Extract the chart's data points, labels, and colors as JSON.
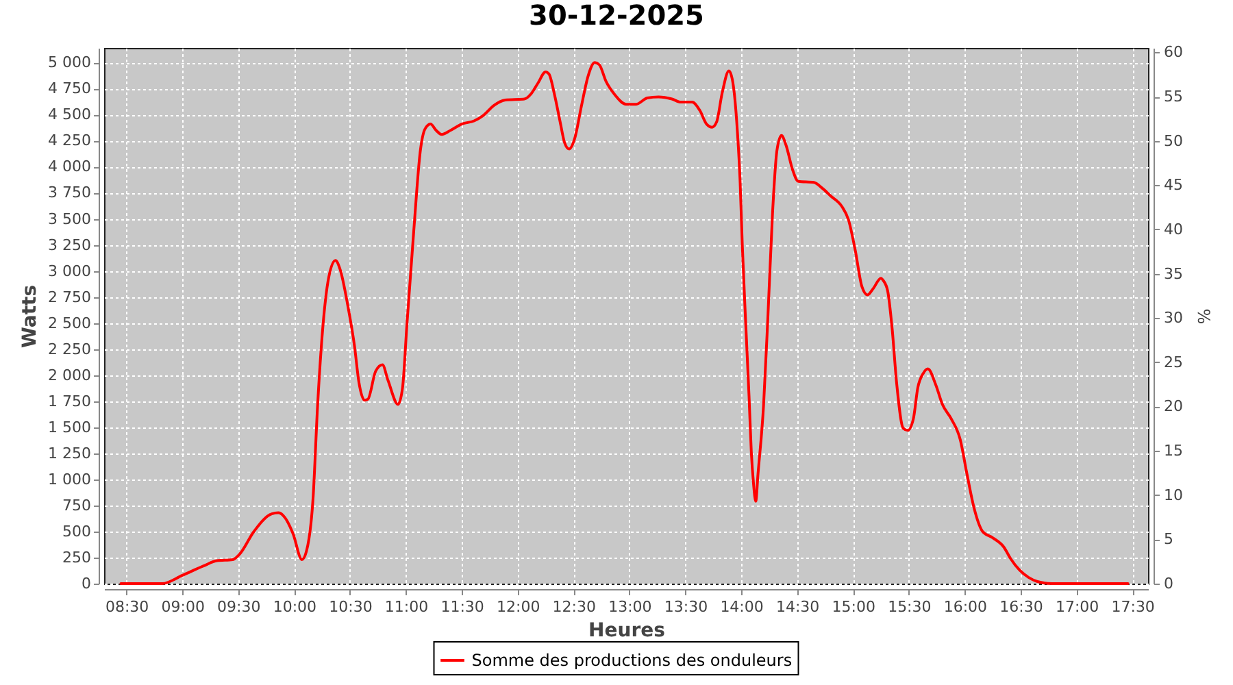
{
  "chart_data": {
    "type": "line",
    "title": "30-12-2025",
    "xlabel": "Heures",
    "ylabel": "Watts",
    "y2label": "%",
    "xlim": [
      8.3,
      17.64
    ],
    "ylim": [
      0,
      5140
    ],
    "y2lim": [
      0,
      60.5
    ],
    "xticks": [
      {
        "value": 8.5,
        "label": "08:30"
      },
      {
        "value": 9,
        "label": "09:00"
      },
      {
        "value": 9.5,
        "label": "09:30"
      },
      {
        "value": 10,
        "label": "10:00"
      },
      {
        "value": 10.5,
        "label": "10:30"
      },
      {
        "value": 11,
        "label": "11:00"
      },
      {
        "value": 11.5,
        "label": "11:30"
      },
      {
        "value": 12,
        "label": "12:00"
      },
      {
        "value": 12.5,
        "label": "12:30"
      },
      {
        "value": 13,
        "label": "13:00"
      },
      {
        "value": 13.5,
        "label": "13:30"
      },
      {
        "value": 14,
        "label": "14:00"
      },
      {
        "value": 14.5,
        "label": "14:30"
      },
      {
        "value": 15,
        "label": "15:00"
      },
      {
        "value": 15.5,
        "label": "15:30"
      },
      {
        "value": 16,
        "label": "16:00"
      },
      {
        "value": 16.5,
        "label": "16:30"
      },
      {
        "value": 17,
        "label": "17:00"
      },
      {
        "value": 17.5,
        "label": "17:30"
      }
    ],
    "yticks": [
      0,
      250,
      500,
      750,
      {
        "value": 1000,
        "label": "1 000"
      },
      {
        "value": 1250,
        "label": "1 250"
      },
      {
        "value": 1500,
        "label": "1 500"
      },
      {
        "value": 1750,
        "label": "1 750"
      },
      {
        "value": 2000,
        "label": "2 000"
      },
      {
        "value": 2250,
        "label": "2 250"
      },
      {
        "value": 2500,
        "label": "2 500"
      },
      {
        "value": 2750,
        "label": "2 750"
      },
      {
        "value": 3000,
        "label": "3 000"
      },
      {
        "value": 3250,
        "label": "3 250"
      },
      {
        "value": 3500,
        "label": "3 500"
      },
      {
        "value": 3750,
        "label": "3 750"
      },
      {
        "value": 4000,
        "label": "4 000"
      },
      {
        "value": 4250,
        "label": "4 250"
      },
      {
        "value": 4500,
        "label": "4 500"
      },
      {
        "value": 4750,
        "label": "4 750"
      },
      {
        "value": 5000,
        "label": "5 000"
      }
    ],
    "y2ticks": [
      0,
      5,
      10,
      15,
      20,
      25,
      30,
      35,
      40,
      45,
      50,
      55,
      60
    ],
    "grid": true,
    "legend": "bottom",
    "x": [
      8.45,
      8.82,
      9.0,
      9.19,
      9.31,
      9.45,
      9.51,
      9.64,
      9.8,
      9.86,
      9.92,
      9.99,
      10.07,
      10.11,
      10.17,
      10.21,
      10.25,
      10.31,
      10.37,
      10.41,
      10.48,
      10.54,
      10.58,
      10.63,
      10.66,
      10.73,
      10.79,
      10.84,
      10.93,
      10.97,
      11.01,
      11.07,
      11.13,
      11.17,
      11.22,
      11.27,
      11.32,
      11.4,
      11.5,
      11.61,
      11.69,
      11.79,
      11.89,
      12.06,
      12.12,
      12.18,
      12.25,
      12.28,
      12.33,
      12.38,
      12.42,
      12.46,
      12.51,
      12.57,
      12.63,
      12.69,
      12.73,
      12.79,
      12.87,
      12.97,
      13.06,
      13.16,
      13.26,
      13.38,
      13.46,
      13.56,
      13.63,
      13.69,
      13.74,
      13.78,
      13.83,
      13.89,
      13.92,
      13.96,
      13.99,
      14.01,
      14.04,
      14.07,
      14.09,
      14.11,
      14.13,
      14.15,
      14.2,
      14.24,
      14.28,
      14.32,
      14.36,
      14.4,
      14.46,
      14.51,
      14.65,
      14.73,
      14.8,
      14.9,
      14.96,
      15.02,
      15.08,
      15.13,
      15.18,
      15.25,
      15.27,
      15.31,
      15.35,
      15.39,
      15.45,
      15.49,
      15.54,
      15.58,
      15.63,
      15.67,
      15.74,
      15.8,
      15.88,
      15.96,
      16.02,
      16.08,
      16.16,
      16.25,
      16.35,
      16.41,
      16.49,
      16.57,
      16.65,
      16.78,
      17.46
    ],
    "series": [
      {
        "name": "Somme des productions des onduleurs",
        "color": "#ff0000",
        "values": [
          0,
          0,
          80,
          170,
          220,
          230,
          280,
          500,
          670,
          680,
          630,
          480,
          230,
          310,
          830,
          1710,
          2370,
          2940,
          3100,
          3020,
          2670,
          2280,
          1930,
          1760,
          1770,
          2040,
          2100,
          1950,
          1720,
          1880,
          2500,
          3380,
          4160,
          4360,
          4410,
          4350,
          4310,
          4350,
          4410,
          4440,
          4490,
          4590,
          4640,
          4650,
          4700,
          4800,
          4910,
          4890,
          4690,
          4430,
          4230,
          4170,
          4270,
          4580,
          4870,
          5000,
          4980,
          4820,
          4690,
          4600,
          4600,
          4660,
          4670,
          4650,
          4620,
          4620,
          4540,
          4410,
          4380,
          4430,
          4710,
          4920,
          4840,
          4430,
          3860,
          3240,
          2500,
          1800,
          1270,
          960,
          790,
          1050,
          1710,
          2590,
          3550,
          4160,
          4300,
          4210,
          3970,
          3860,
          3850,
          3790,
          3720,
          3620,
          3490,
          3200,
          2850,
          2770,
          2830,
          2930,
          2910,
          2810,
          2450,
          1930,
          1490,
          1470,
          1580,
          1880,
          2020,
          2060,
          1910,
          1720,
          1580,
          1380,
          1050,
          740,
          500,
          440,
          350,
          240,
          130,
          60,
          20,
          0,
          0
        ]
      }
    ]
  }
}
